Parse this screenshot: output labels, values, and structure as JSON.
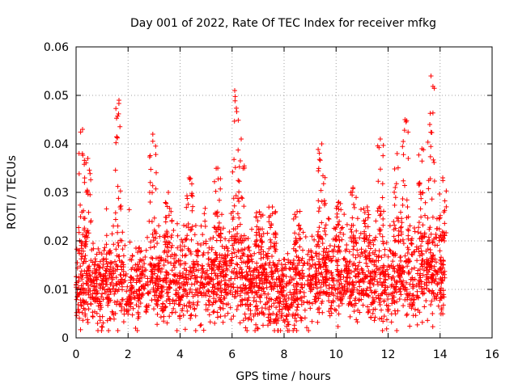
{
  "chart_data": {
    "type": "scatter",
    "title": "Day 001 of 2022, Rate Of TEC Index for receiver mfkg",
    "xlabel": "GPS time / hours",
    "ylabel": "ROTI / TECUs",
    "xlim": [
      0,
      16
    ],
    "ylim": [
      0,
      0.06
    ],
    "xticks": [
      "0",
      "2",
      "4",
      "6",
      "8",
      "10",
      "12",
      "14",
      "16"
    ],
    "yticks": [
      "0",
      "0.01",
      "0.02",
      "0.03",
      "0.04",
      "0.05",
      "0.06"
    ],
    "grid": true,
    "marker": "plus",
    "series_color": "#ff0000",
    "series": [
      {
        "name": "ROTI",
        "baseline": [
          [
            0.0,
            0.01
          ],
          [
            0.5,
            0.011
          ],
          [
            1.0,
            0.011
          ],
          [
            1.5,
            0.012
          ],
          [
            2.0,
            0.01
          ],
          [
            2.5,
            0.011
          ],
          [
            3.0,
            0.012
          ],
          [
            3.5,
            0.011
          ],
          [
            4.0,
            0.011
          ],
          [
            4.5,
            0.012
          ],
          [
            5.0,
            0.012
          ],
          [
            5.5,
            0.013
          ],
          [
            6.0,
            0.012
          ],
          [
            6.5,
            0.012
          ],
          [
            7.0,
            0.011
          ],
          [
            7.5,
            0.01
          ],
          [
            8.0,
            0.009
          ],
          [
            8.5,
            0.01
          ],
          [
            9.0,
            0.011
          ],
          [
            9.5,
            0.013
          ],
          [
            10.0,
            0.012
          ],
          [
            10.5,
            0.012
          ],
          [
            11.0,
            0.011
          ],
          [
            11.5,
            0.012
          ],
          [
            12.0,
            0.011
          ],
          [
            12.5,
            0.012
          ],
          [
            13.0,
            0.012
          ],
          [
            13.5,
            0.013
          ],
          [
            14.0,
            0.012
          ],
          [
            14.2,
            0.012
          ]
        ],
        "peaks": [
          [
            0.25,
            0.043
          ],
          [
            0.45,
            0.037
          ],
          [
            1.65,
            0.049
          ],
          [
            2.95,
            0.042
          ],
          [
            3.55,
            0.03
          ],
          [
            4.35,
            0.033
          ],
          [
            5.45,
            0.035
          ],
          [
            6.1,
            0.051
          ],
          [
            6.35,
            0.041
          ],
          [
            7.05,
            0.026
          ],
          [
            7.55,
            0.027
          ],
          [
            8.5,
            0.026
          ],
          [
            9.45,
            0.04
          ],
          [
            10.1,
            0.028
          ],
          [
            10.65,
            0.031
          ],
          [
            11.2,
            0.027
          ],
          [
            11.7,
            0.041
          ],
          [
            12.35,
            0.038
          ],
          [
            12.65,
            0.045
          ],
          [
            13.3,
            0.039
          ],
          [
            13.65,
            0.054
          ],
          [
            14.1,
            0.033
          ]
        ]
      }
    ]
  }
}
